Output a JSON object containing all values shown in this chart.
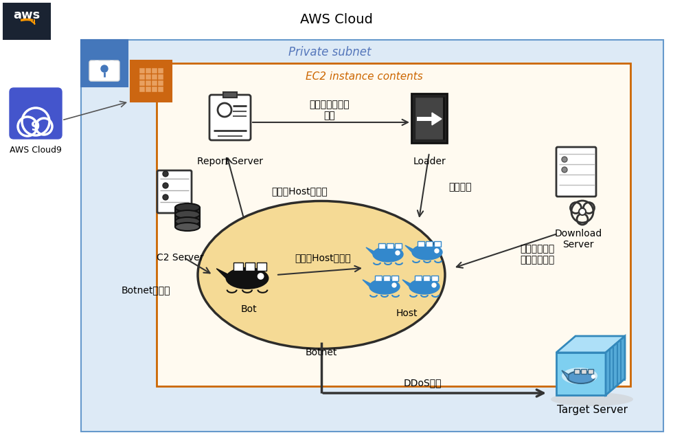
{
  "title": "AWS Cloud",
  "bg_color": "#f5f5f5",
  "aws_logo_bg": "#1a2332",
  "private_subnet_bg": "#ddeaf6",
  "private_subnet_border": "#6699cc",
  "ec2_box_bg": "#fffaf0",
  "ec2_box_border": "#cc6600",
  "ellipse_fill": "#f5d990",
  "ellipse_border": "#222222",
  "cloud9_bg": "#4455cc",
  "lock_bg": "#4477bb",
  "chip_bg": "#cc6611",
  "arrow_color": "#333333",
  "labels": {
    "title": "AWS Cloud",
    "private_subnet": "Private subnet",
    "ec2_contents": "EC2 instance contents",
    "report_server": "Report Server",
    "loader": "Loader",
    "c2_server": "C2 Server",
    "download_server": "Download\nServer",
    "target_server": "Target Server",
    "aws_cloud9": "AWS Cloud9",
    "bot": "Bot",
    "host": "Host",
    "botnet": "Botnet",
    "login_info": "ログイン情報の\n報告",
    "login": "ログイン",
    "weak_host_report": "脆弱なHostの報告",
    "weak_host_search": "脆弱なHostの探索",
    "botnet_control": "Botnetの制御",
    "malware_download": "マルウェアの\nダウンロード",
    "ddos_attack": "DDoS攻撃"
  }
}
